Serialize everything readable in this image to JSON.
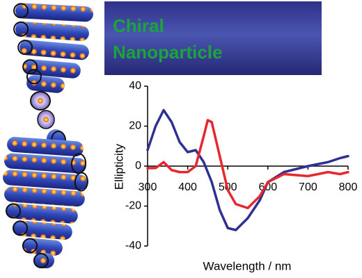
{
  "chart_data": {
    "type": "line",
    "title": "Chiral",
    "subtitle": "Nanoparticle",
    "x_label": "Wavelength / nm",
    "y_label": "Ellipticity",
    "x": [
      300,
      320,
      340,
      360,
      380,
      400,
      420,
      440,
      450,
      460,
      480,
      500,
      520,
      550,
      580,
      600,
      640,
      700,
      750,
      780,
      800
    ],
    "series": [
      {
        "color": "#2e3192",
        "values": [
          8,
          20,
          28,
          22,
          12,
          7,
          8,
          2,
          -3,
          -8,
          -22,
          -31,
          -32,
          -26,
          -17,
          -8,
          -3,
          0,
          2,
          4,
          5
        ]
      },
      {
        "color": "#e8262e",
        "values": [
          -1,
          -1,
          2,
          -2,
          -3,
          -3,
          0,
          15,
          23,
          22,
          5,
          -12,
          -19,
          -21,
          -15,
          -8,
          -4,
          -5,
          -3,
          -4,
          -3
        ]
      }
    ],
    "xlim": [
      300,
      800
    ],
    "xticks": [
      300,
      400,
      500,
      600,
      700,
      800
    ],
    "ylim": [
      -40,
      40
    ],
    "yticks": [
      -40,
      -20,
      0,
      20,
      40
    ]
  }
}
